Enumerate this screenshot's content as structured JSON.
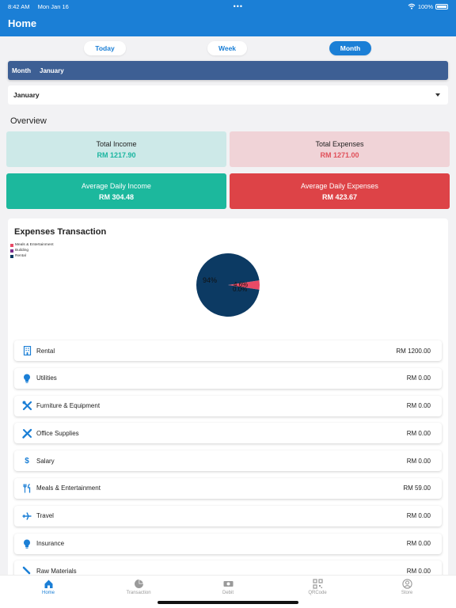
{
  "status": {
    "time": "8:42 AM",
    "date": "Mon Jan 16",
    "battery": "100%"
  },
  "header": {
    "title": "Home"
  },
  "range_tabs": [
    "Today",
    "Week",
    "Month"
  ],
  "range_active": "Month",
  "month_bar": {
    "label": "Month",
    "value": "January"
  },
  "month_select": {
    "value": "January"
  },
  "overview": {
    "title": "Overview",
    "total_income": {
      "label": "Total Income",
      "value": "RM 1217.90"
    },
    "total_expenses": {
      "label": "Total Expenses",
      "value": "RM 1271.00"
    },
    "avg_daily_income": {
      "label": "Average Daily Income",
      "value": "RM 304.48"
    },
    "avg_daily_expenses": {
      "label": "Average Daily Expenses",
      "value": "RM 423.67"
    }
  },
  "colors": {
    "accent": "#1b7fd6",
    "income_light": "#cde9e8",
    "income_text": "#1ab5a0",
    "expense_light": "#f0d3d7",
    "expense_text": "#e0505a",
    "income_dark": "#1cb89d",
    "expense_dark": "#dd4347",
    "pie_meals": "#e84a66",
    "pie_building": "#7b2d8c",
    "pie_rental": "#0c3a63"
  },
  "expenses": {
    "title": "Expenses Transaction",
    "legend": [
      "Meals & Entertainment",
      "Building",
      "Rental"
    ],
    "pie_labels": {
      "rental": "94%",
      "meals": "4.6%",
      "building": "0.0%"
    },
    "items": [
      {
        "icon": "building-icon",
        "name": "Rental",
        "amount": "RM 1200.00"
      },
      {
        "icon": "lightbulb-icon",
        "name": "Utilities",
        "amount": "RM 0.00"
      },
      {
        "icon": "tools-icon",
        "name": "Furniture & Equipment",
        "amount": "RM 0.00"
      },
      {
        "icon": "pencil-ruler-icon",
        "name": "Office Supplies",
        "amount": "RM 0.00"
      },
      {
        "icon": "dollar-icon",
        "name": "Salary",
        "amount": "RM 0.00"
      },
      {
        "icon": "utensils-icon",
        "name": "Meals & Entertainment",
        "amount": "RM 59.00"
      },
      {
        "icon": "plane-icon",
        "name": "Travel",
        "amount": "RM 0.00"
      },
      {
        "icon": "lightbulb-icon",
        "name": "Insurance",
        "amount": "RM 0.00"
      },
      {
        "icon": "brush-icon",
        "name": "Raw Materials",
        "amount": "RM 0.00"
      }
    ]
  },
  "chart_data": {
    "type": "pie",
    "labels": [
      "Meals & Entertainment",
      "Building",
      "Rental"
    ],
    "values": [
      4.6,
      0.0,
      94
    ]
  },
  "tabbar": [
    {
      "icon": "home-icon",
      "label": "Home"
    },
    {
      "icon": "pie-chart-icon",
      "label": "Transaction"
    },
    {
      "icon": "cash-icon",
      "label": "Debit"
    },
    {
      "icon": "qrcode-icon",
      "label": "QRCode"
    },
    {
      "icon": "user-circle-icon",
      "label": "Store"
    }
  ]
}
